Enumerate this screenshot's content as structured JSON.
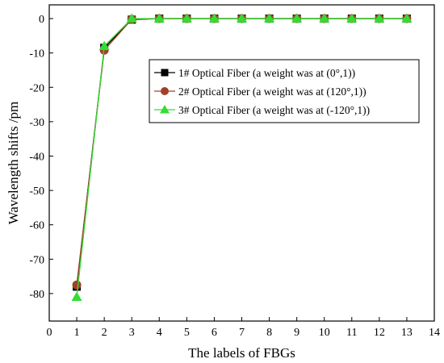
{
  "chart_data": {
    "type": "line",
    "xlabel": "The labels of FBGs",
    "ylabel": "Wavelength shifts /pm",
    "xlim": [
      0,
      14
    ],
    "ylim": [
      -88,
      4
    ],
    "xticks": [
      0,
      1,
      2,
      3,
      4,
      5,
      6,
      7,
      8,
      9,
      10,
      11,
      12,
      13,
      14
    ],
    "yticks": [
      0,
      -10,
      -20,
      -30,
      -40,
      -50,
      -60,
      -70,
      -80
    ],
    "grid": false,
    "legend_position": "top-right",
    "x": [
      1,
      2,
      3,
      4,
      5,
      6,
      7,
      8,
      9,
      10,
      11,
      12,
      13
    ],
    "series": [
      {
        "name": "1# Optical Fiber (a weight was at (0°,1))",
        "marker": "square",
        "color": "#000000",
        "values": [
          -78,
          -8.5,
          -0.3,
          0,
          0,
          0,
          0,
          0,
          0,
          0,
          0,
          0,
          0
        ]
      },
      {
        "name": "2# Optical Fiber (a weight was at (120°,1))",
        "marker": "circle",
        "color": "#a0402a",
        "values": [
          -77.5,
          -9.2,
          -0.2,
          0,
          0,
          0,
          0,
          0,
          0,
          0,
          0,
          0,
          0
        ]
      },
      {
        "name": "3# Optical Fiber (a weight was at (-120°,1))",
        "marker": "triangle",
        "color": "#33dd33",
        "values": [
          -81,
          -8,
          0,
          0,
          0,
          0,
          0,
          0,
          0,
          0,
          0,
          0,
          0
        ]
      }
    ]
  }
}
